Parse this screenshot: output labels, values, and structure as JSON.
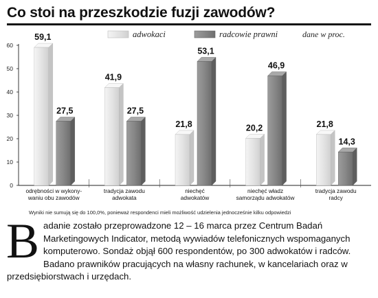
{
  "title": "Co stoi na przeszkodzie fuzji zawodów?",
  "footnote": "Wyniki nie sumują się do 100,0%, ponieważ respondenci mieli możliwość udzielenia jednocześnie kilku odpowiedzi",
  "body": {
    "dropcap": "B",
    "text": "adanie zostało przeprowadzone 12 – 16 marca przez Centrum Badań Marketingowych Indicator, metodą wywiadów telefonicznych wspomaganych komputerowo. Sondaż objął 600 respondentów, po 300 adwokatów i radców. Badano prawników pracujących na własny rachunek, w kancelariach oraz w przedsiębiorstwach i urzędach."
  },
  "chart_data": {
    "type": "bar",
    "title": "Co stoi na przeszkodzie fuzji zawodów?",
    "unit_note": "dane w proc.",
    "ylim": [
      0,
      60
    ],
    "yticks": [
      0,
      10,
      20,
      30,
      40,
      50,
      60
    ],
    "grid": false,
    "legend_position": "top",
    "categories": [
      [
        "odrębności w wykony-",
        "waniu obu zawodów"
      ],
      [
        "tradycja zawodu",
        "adwokata"
      ],
      [
        "niechęć",
        "adwokatów"
      ],
      [
        "niechęć władz",
        "samorządu adwokatów"
      ],
      [
        "tradycja zawodu",
        "radcy"
      ]
    ],
    "series": [
      {
        "name": "adwokaci",
        "values": [
          59.1,
          41.9,
          21.8,
          20.2,
          21.8
        ],
        "labels": [
          "59,1",
          "41,9",
          "21,8",
          "20,2",
          "21,8"
        ],
        "color": "#e4e4e4"
      },
      {
        "name": "radcowie prawni",
        "values": [
          27.5,
          27.5,
          53.1,
          46.9,
          14.3
        ],
        "labels": [
          "27,5",
          "27,5",
          "53,1",
          "46,9",
          "14,3"
        ],
        "color": "#8a8a8a"
      }
    ]
  }
}
